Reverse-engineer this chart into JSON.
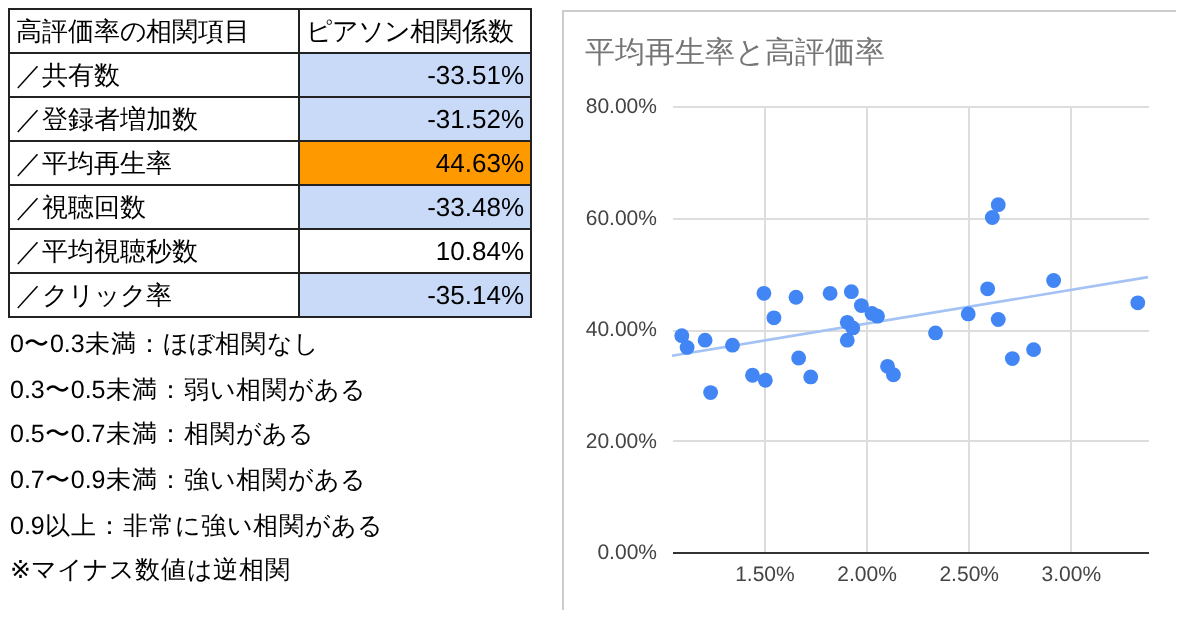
{
  "chart_data": [
    {
      "type": "other",
      "annotations": [
        "高評価率の相関項目",
        "ピアソン相関係数",
        "／共有数",
        "-33.51%",
        "／登録者増加数",
        "-31.52%",
        "／平均再生率",
        "44.63%",
        "／視聴回数",
        "-33.48%",
        "／平均視聴秒数",
        "10.84%",
        "／クリック率",
        "-35.14%",
        "0〜0.3未満：ほぼ相関なし",
        "0.3〜0.5未満：弱い相関がある",
        "0.5〜0.7未満：相関がある",
        "0.7〜0.9未満：強い相関がある",
        "0.9以上：非常に強い相関がある",
        "※マイナス数値は逆相関"
      ],
      "colors": [
        "#c9daf8",
        "#c9daf8",
        "#ff9900",
        "#c9daf8",
        "#ffffff",
        "#c9daf8"
      ]
    },
    {
      "type": "scatter",
      "title": "平均再生率と高評価率",
      "xlim": [
        1.05,
        3.38
      ],
      "xticks": [
        {
          "value": 1.5,
          "label": "1.50%"
        },
        {
          "value": 2,
          "label": "2.00%"
        },
        {
          "value": 2.5,
          "label": "2.50%"
        },
        {
          "value": 3,
          "label": "3.00%"
        }
      ],
      "ylim": [
        0,
        80
      ],
      "yticks": [
        {
          "value": 0,
          "label": "0.00%"
        },
        {
          "value": 20,
          "label": "20.00%"
        },
        {
          "value": 40,
          "label": "40.00%"
        },
        {
          "value": 60,
          "label": "60.00%"
        },
        {
          "value": 80,
          "label": "80.00%"
        }
      ],
      "grid": true,
      "series": [
        {
          "type": "scatter",
          "marker": "circle",
          "color": "#4285f4",
          "x": [
            1.098,
            1.124,
            1.212,
            1.239,
            1.346,
            1.444,
            1.5,
            1.507,
            1.549,
            1.657,
            1.67,
            1.729,
            1.824,
            1.908,
            1.908,
            1.928,
            1.935,
            1.977,
            2.029,
            2.056,
            2.105,
            2.134,
            2.34,
            2.5,
            2.595,
            2.618,
            2.647,
            2.647,
            2.716,
            2.82,
            2.918,
            3.33
          ],
          "values": [
            38.8,
            36.7,
            38.0,
            28.6,
            37.1,
            31.7,
            46.4,
            30.8,
            42.0,
            45.7,
            34.8,
            31.4,
            46.4,
            41.2,
            38.0,
            46.7,
            40.2,
            44.2,
            42.8,
            42.3,
            33.3,
            31.8,
            39.3,
            42.7,
            47.2,
            60.0,
            62.3,
            41.7,
            34.7,
            36.3,
            48.7,
            44.7
          ]
        },
        {
          "type": "line",
          "marker": "none",
          "color": "#a4c2f4",
          "x": [
            1.05,
            3.38
          ],
          "values": [
            35.2,
            49.3
          ]
        }
      ]
    }
  ]
}
